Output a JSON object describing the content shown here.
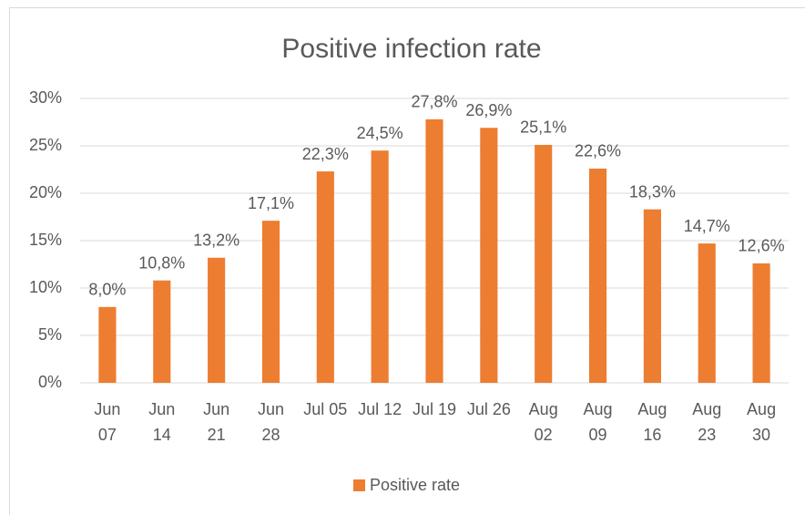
{
  "chart_data": {
    "type": "bar",
    "title": "Positive infection rate",
    "categories": [
      "Jun 07",
      "Jun 14",
      "Jun 21",
      "Jun 28",
      "Jul 05",
      "Jul 12",
      "Jul 19",
      "Jul 26",
      "Aug 02",
      "Aug 09",
      "Aug 16",
      "Aug 23",
      "Aug 30"
    ],
    "series": [
      {
        "name": "Positive rate",
        "color": "#ed7d31",
        "values": [
          8.0,
          10.8,
          13.2,
          17.1,
          22.3,
          24.5,
          27.8,
          26.9,
          25.1,
          22.6,
          18.3,
          14.7,
          12.6
        ],
        "value_labels": [
          "8,0%",
          "10,8%",
          "13,2%",
          "17,1%",
          "22,3%",
          "24,5%",
          "27,8%",
          "26,9%",
          "25,1%",
          "22,6%",
          "18,3%",
          "14,7%",
          "12,6%"
        ]
      }
    ],
    "ylim": [
      0,
      30
    ],
    "yticks": [
      {
        "value": 0,
        "label": "0%"
      },
      {
        "value": 5,
        "label": "5%"
      },
      {
        "value": 10,
        "label": "10%"
      },
      {
        "value": 15,
        "label": "15%"
      },
      {
        "value": 20,
        "label": "20%"
      },
      {
        "value": 25,
        "label": "25%"
      },
      {
        "value": 30,
        "label": "30%"
      }
    ],
    "grid": true,
    "legend": "bottom"
  }
}
